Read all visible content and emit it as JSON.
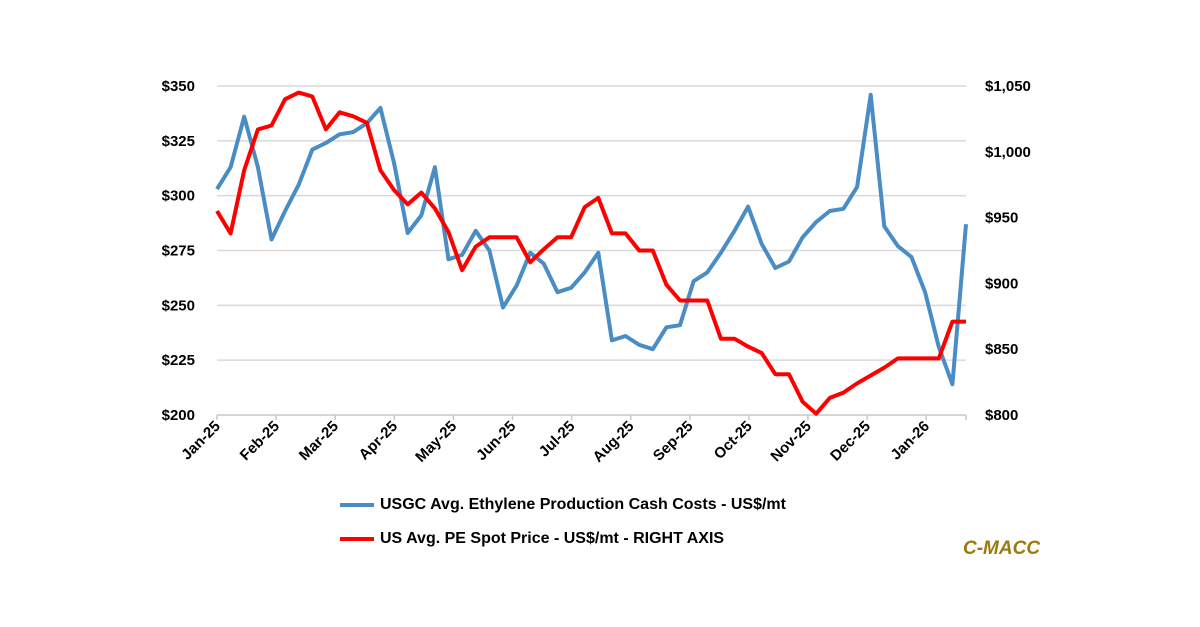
{
  "chart_data": {
    "type": "line",
    "title": "",
    "xlabel": "",
    "ylabel": "",
    "x_ticks": [
      "Jan-25",
      "Feb-25",
      "Mar-25",
      "Apr-25",
      "May-25",
      "Jun-25",
      "Jul-25",
      "Aug-25",
      "Sep-25",
      "Oct-25",
      "Nov-25",
      "Dec-25",
      "Jan-26"
    ],
    "y_left": {
      "ylim": [
        200,
        350
      ],
      "ticks": [
        "$200",
        "$225",
        "$250",
        "$275",
        "$300",
        "$325",
        "$350"
      ]
    },
    "y_right": {
      "ylim": [
        800,
        1050
      ],
      "ticks": [
        "$800",
        "$850",
        "$900",
        "$950",
        "$1,000",
        "$1,050"
      ]
    },
    "grid": true,
    "legend_position": "bottom",
    "series": [
      {
        "name": "USGC Avg. Ethylene Production Cash Costs - US$/mt",
        "axis": "left",
        "color": "#4a8cc4",
        "values": [
          303,
          313,
          336,
          313,
          280,
          293,
          305,
          321,
          324,
          328,
          329,
          333,
          340,
          315,
          283,
          291,
          313,
          271,
          273,
          284,
          275,
          249,
          259,
          274,
          269,
          256,
          258,
          265,
          274,
          234,
          236,
          232,
          230,
          240,
          241,
          261,
          265,
          274,
          284,
          295,
          278,
          267,
          270,
          281,
          288,
          293,
          294,
          304,
          346,
          286,
          277,
          272,
          256,
          231,
          214,
          287
        ]
      },
      {
        "name": "US Avg. PE Spot Price - US$/mt - RIGHT AXIS",
        "axis": "right",
        "color": "#ff0000",
        "values": [
          955,
          938,
          986,
          1017,
          1020,
          1040,
          1045,
          1042,
          1017,
          1030,
          1027,
          1022,
          986,
          971,
          960,
          969,
          957,
          939,
          910,
          928,
          935,
          935,
          935,
          916,
          926,
          935,
          935,
          958,
          965,
          938,
          938,
          925,
          925,
          899,
          887,
          887,
          887,
          858,
          858,
          852,
          847,
          831,
          831,
          810,
          801,
          813,
          817,
          824,
          830,
          836,
          843,
          843,
          843,
          843,
          871,
          871
        ]
      }
    ]
  },
  "logo": "C-MACC"
}
